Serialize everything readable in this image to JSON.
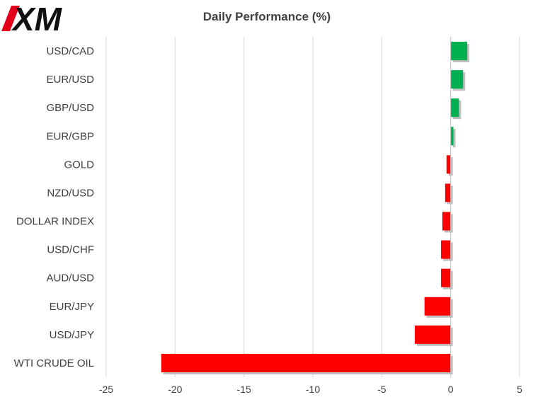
{
  "logo": {
    "text": "XM",
    "accent_color": "#e3001b"
  },
  "chart_data": {
    "type": "bar",
    "orientation": "horizontal",
    "title": "Daily Performance  (%)",
    "categories": [
      "USD/CAD",
      "EUR/USD",
      "GBP/USD",
      "EUR/GBP",
      "GOLD",
      "NZD/USD",
      "DOLLAR INDEX",
      "USD/CHF",
      "AUD/USD",
      "EUR/JPY",
      "USD/JPY",
      "WTI CRUDE OIL"
    ],
    "values": [
      1.2,
      0.9,
      0.6,
      0.2,
      -0.3,
      -0.4,
      -0.6,
      -0.7,
      -0.7,
      -1.9,
      -2.6,
      -21.0
    ],
    "xlim": [
      -25,
      5
    ],
    "xticks": [
      -25,
      -20,
      -15,
      -10,
      -5,
      0,
      5
    ],
    "grid": true,
    "legend": "none",
    "colors": {
      "positive": "#00b050",
      "negative": "#ff0000",
      "grid": "#d9d9d9",
      "shadow": "#bfbfbf"
    }
  }
}
